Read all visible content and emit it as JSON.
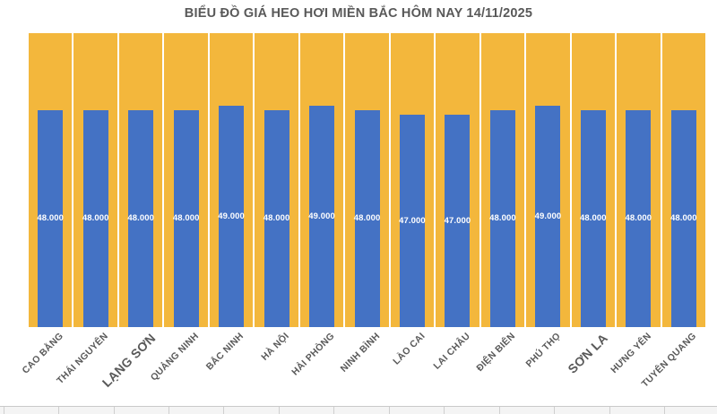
{
  "title": "BIỂU ĐỒ GIÁ HEO HƠI MIỀN BẮC HÔM NAY 14/11/2025",
  "chart_data": {
    "type": "bar",
    "title": "BIỂU ĐỒ GIÁ HEO HƠI MIỀN BẮC HÔM NAY 14/11/2025",
    "categories": [
      "CAO BẰNG",
      "THÁI NGUYÊN",
      "LẠNG SƠN",
      "QUẢNG NINH",
      "BẮC NINH",
      "HÀ NỘI",
      "HẢI PHÒNG",
      "NINH BÌNH",
      "LÀO CAI",
      "LAI CHÂU",
      "ĐIỆN BIÊN",
      "PHÚ THỌ",
      "SƠN LA",
      "HƯNG YÊN",
      "TUYÊN QUANG"
    ],
    "values": [
      48000,
      48000,
      48000,
      48000,
      49000,
      48000,
      49000,
      48000,
      47000,
      47000,
      48000,
      49000,
      48000,
      48000,
      48000
    ],
    "value_labels": [
      "48.000",
      "48.000",
      "48.000",
      "48.000",
      "49.000",
      "48.000",
      "49.000",
      "48.000",
      "47.000",
      "47.000",
      "48.000",
      "49.000",
      "48.000",
      "48.000",
      "48.000"
    ],
    "emphasized_categories": [
      "LẠNG SƠN",
      "SƠN LA"
    ],
    "xlabel": "",
    "ylabel": "",
    "ylim": [
      0,
      65000
    ],
    "grid": false,
    "legend": false,
    "colors": {
      "bar": "#4472C4",
      "column_background": "#F3B73C",
      "column_gap": "#FFFFFF",
      "value_label_text": "#FFFFFF",
      "axis_label_text": "#595959",
      "title_text": "#595959",
      "table_strip_border": "#C9C9C9",
      "table_strip_fill": "#F4F4F4"
    }
  }
}
